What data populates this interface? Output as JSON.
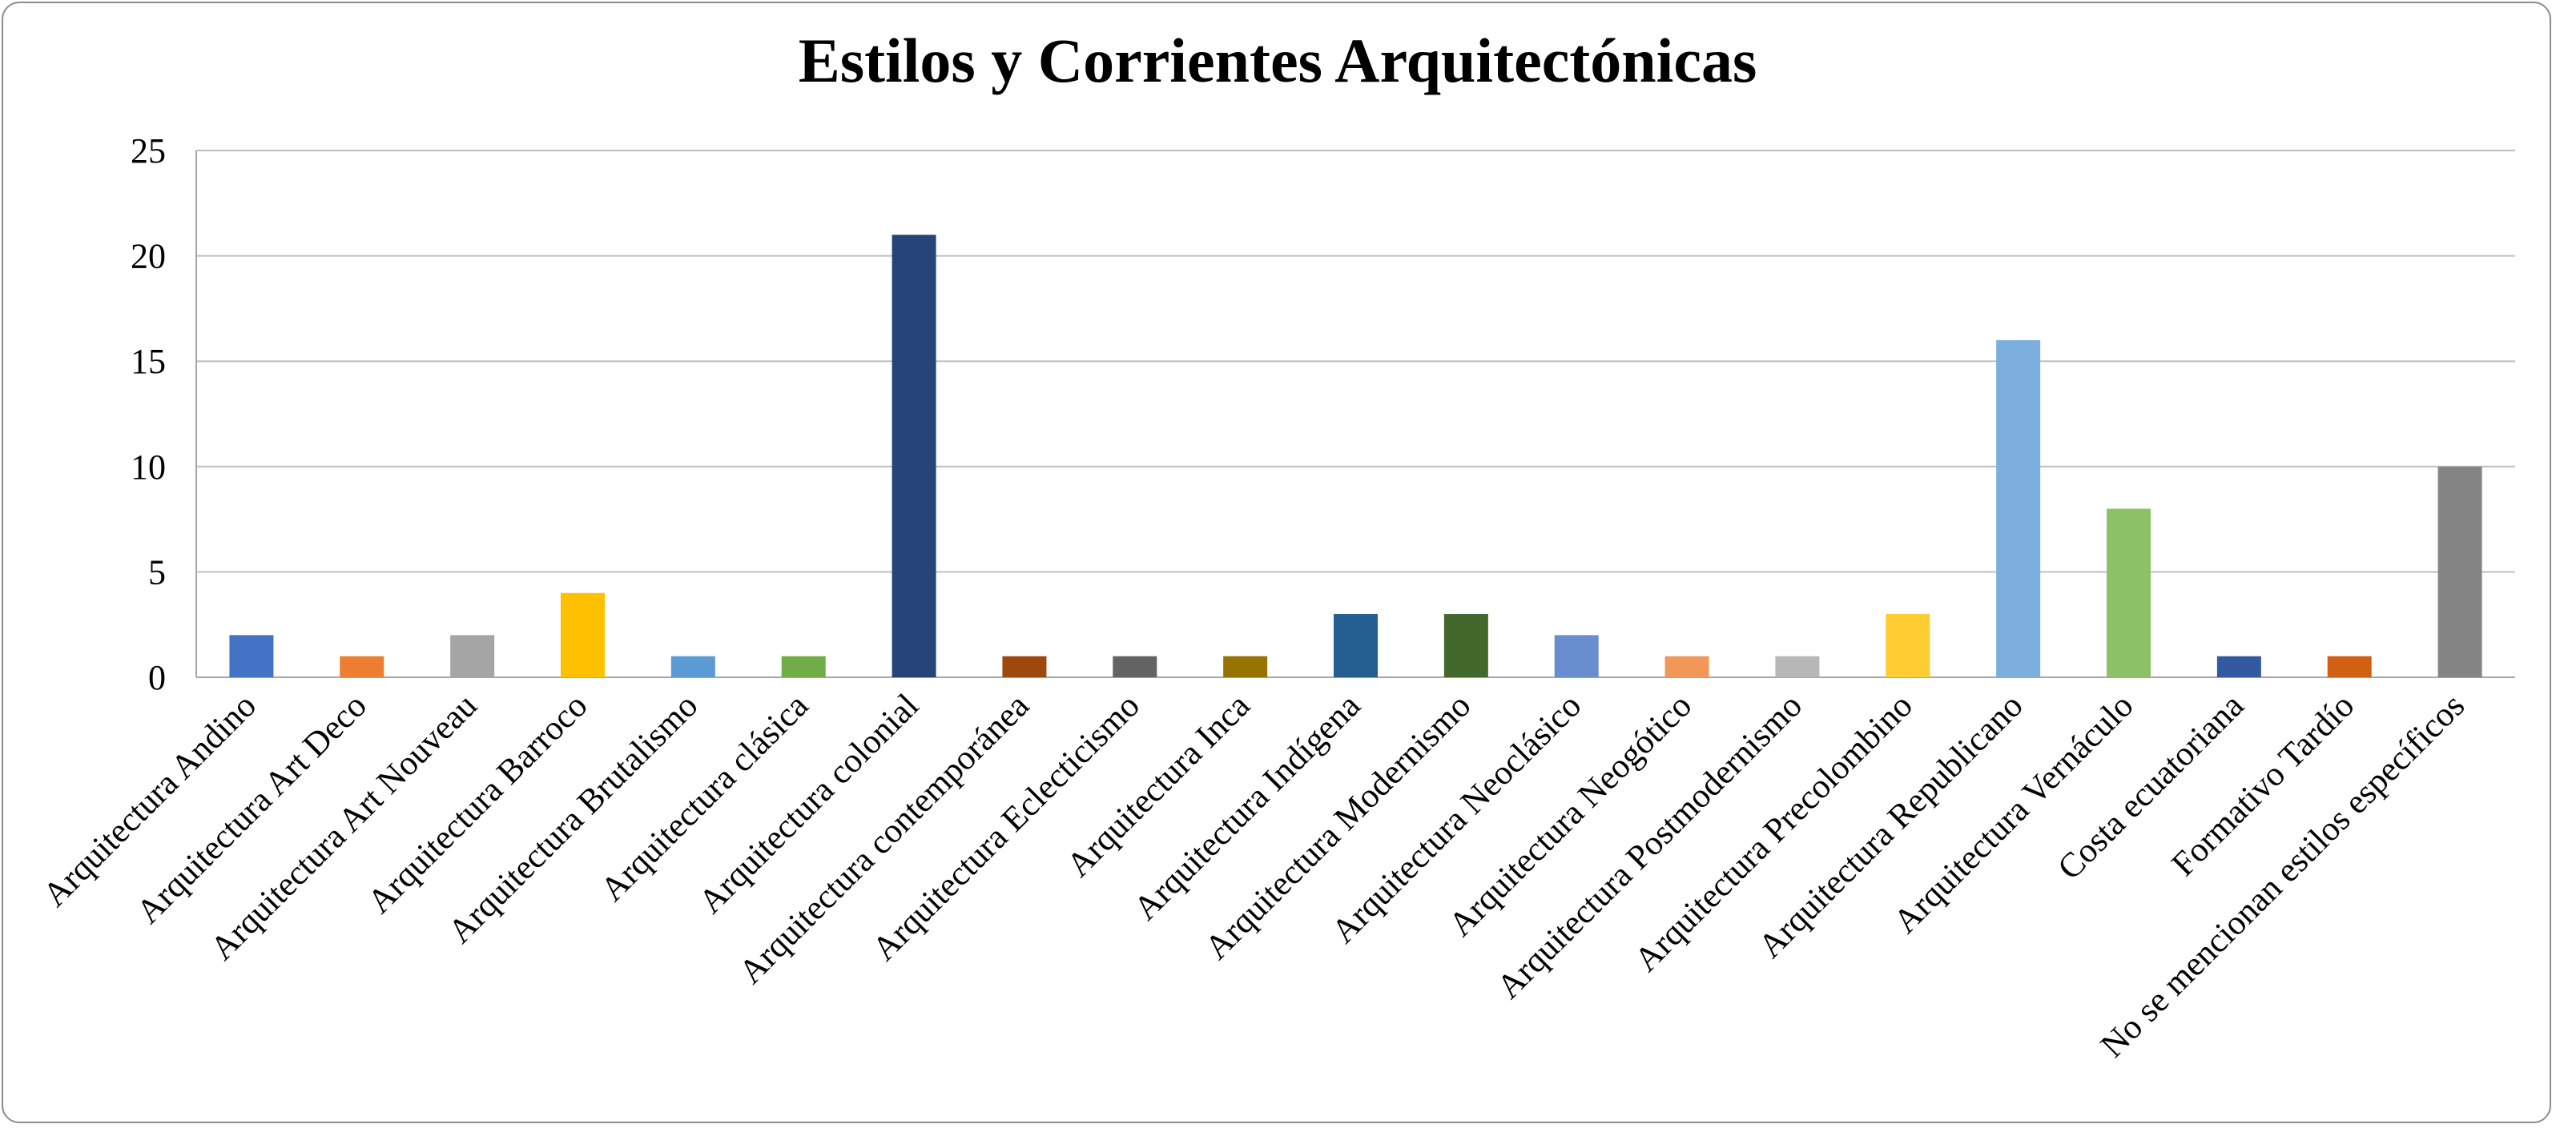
{
  "chart_data": {
    "type": "bar",
    "title": "Estilos y Corrientes Arquitectónicas",
    "xlabel": "",
    "ylabel": "",
    "ylim": [
      0,
      25
    ],
    "yticks": [
      "0",
      "5",
      "10",
      "15",
      "20",
      "25"
    ],
    "grid": true,
    "legend": "none",
    "categories": [
      "Arquitectura Andino",
      "Arquitectura Art Deco",
      "Arquitectura Art Nouveau",
      "Arquitectura Barroco",
      "Arquitectura Brutalismo",
      "Arquitectura clásica",
      "Arquitectura colonial",
      "Arquitectura contemporánea",
      "Arquitectura Eclecticismo",
      "Arquitectura Inca",
      "Arquitectura Indígena",
      "Arquitectura Modernismo",
      "Arquitectura Neoclásico",
      "Arquitectura Neogótico",
      "Arquitectura Postmodernismo",
      "Arquitectura Precolombino",
      "Arquitectura Republicano",
      "Arquitectura Vernáculo",
      "Costa ecuatoriana",
      "Formativo Tardío",
      "No se mencionan estilos específicos"
    ],
    "values": [
      2,
      1,
      2,
      4,
      1,
      1,
      21,
      1,
      1,
      1,
      3,
      3,
      2,
      1,
      1,
      3,
      16,
      8,
      1,
      1,
      10
    ],
    "colors": [
      "#4472C4",
      "#ED7D31",
      "#A5A5A5",
      "#FFC000",
      "#5B9BD5",
      "#70AD47",
      "#264478",
      "#9E480E",
      "#636363",
      "#997300",
      "#255E91",
      "#43682B",
      "#698ED0",
      "#F1975A",
      "#B7B7B7",
      "#FFCD33",
      "#7CAFDD",
      "#8CC168",
      "#335AA1",
      "#D26012",
      "#848484"
    ]
  }
}
